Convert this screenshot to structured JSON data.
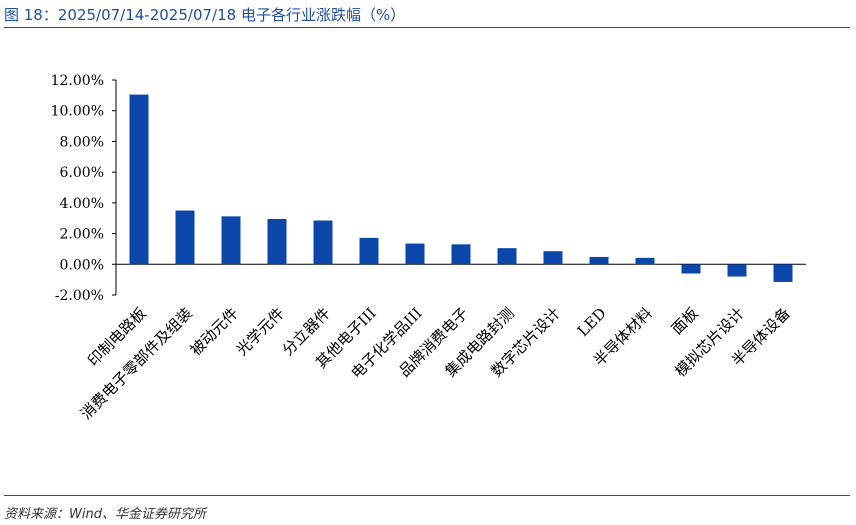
{
  "header": {
    "title": "图 18：2025/07/14-2025/07/18 电子各行业涨跌幅（%）"
  },
  "footer": {
    "source": "资料来源：Wind、华金证券研究所"
  },
  "colors": {
    "accent": "#1f4e9c",
    "bar": "#0a47a9"
  },
  "chart_data": {
    "type": "bar",
    "title": "图 18：2025/07/14-2025/07/18 电子各行业涨跌幅（%）",
    "xlabel": "",
    "ylabel": "",
    "ylim": [
      -2,
      12
    ],
    "yticks": [
      -2,
      0,
      2,
      4,
      6,
      8,
      10,
      12
    ],
    "ytick_labels": [
      "-2.00%",
      "0.00%",
      "2.00%",
      "4.00%",
      "6.00%",
      "8.00%",
      "10.00%",
      "12.00%"
    ],
    "grid": false,
    "legend": "none",
    "categories": [
      "印制电路板",
      "消费电子零部件及组装",
      "被动元件",
      "光学元件",
      "分立器件",
      "其他电子III",
      "电子化学品III",
      "品牌消费电子",
      "集成电路封测",
      "数字芯片设计",
      "LED",
      "半导体材料",
      "面板",
      "模拟芯片设计",
      "半导体设备"
    ],
    "values": [
      11.05,
      3.5,
      3.12,
      2.95,
      2.85,
      1.72,
      1.35,
      1.3,
      1.05,
      0.85,
      0.48,
      0.42,
      -0.6,
      -0.8,
      -1.15
    ]
  }
}
